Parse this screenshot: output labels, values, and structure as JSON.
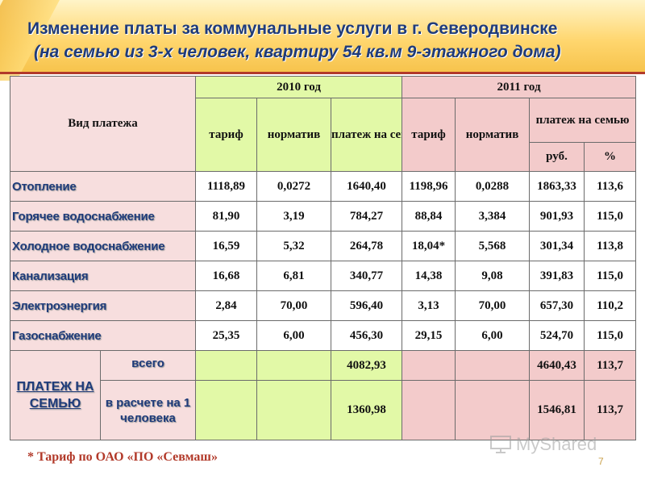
{
  "slide": {
    "title_line1": "Изменение платы за коммунальные услуги в г. Северодвинске",
    "title_line2": "(на семью из 3-х человек, квартиру 54 кв.м  9-этажного дома)",
    "footnote": "* Тариф по ОАО «ПО «Севмаш»",
    "page_number": "7",
    "watermark": "MyShared"
  },
  "table": {
    "header": {
      "payment_type": "Вид платежа",
      "year_2010": "2010  год",
      "year_2011": "2011 год",
      "tariff": "тариф",
      "norm": "норматив",
      "family_payment_2010": "платеж на семью",
      "family_payment_2011": "платеж на семью",
      "rub": "руб.",
      "percent": "%"
    },
    "rows": [
      {
        "name": "Отопление",
        "t10": "1118,89",
        "n10": "0,0272",
        "p10": "1640,40",
        "t11": "1198,96",
        "n11": "0,0288",
        "p11": "1863,33",
        "pct": "113,6"
      },
      {
        "name": "Горячее водоснабжение",
        "t10": "81,90",
        "n10": "3,19",
        "p10": "784,27",
        "t11": "88,84",
        "n11": "3,384",
        "p11": "901,93",
        "pct": "115,0"
      },
      {
        "name": "Холодное водоснабжение",
        "t10": "16,59",
        "n10": "5,32",
        "p10": "264,78",
        "t11": "18,04*",
        "n11": "5,568",
        "p11": "301,34",
        "pct": "113,8"
      },
      {
        "name": "Канализация",
        "t10": "16,68",
        "n10": "6,81",
        "p10": "340,77",
        "t11": "14,38",
        "n11": "9,08",
        "p11": "391,83",
        "pct": "115,0"
      },
      {
        "name": "Электроэнергия",
        "t10": "2,84",
        "n10": "70,00",
        "p10": "596,40",
        "t11": "3,13",
        "n11": "70,00",
        "p11": "657,30",
        "pct": "110,2"
      },
      {
        "name": "Газоснабжение",
        "t10": "25,35",
        "n10": "6,00",
        "p10": "456,30",
        "t11": "29,15",
        "n11": "6,00",
        "p11": "524,70",
        "pct": "115,0"
      }
    ],
    "totals": {
      "label": "ПЛАТЕЖ НА СЕМЬЮ",
      "total_label": "всего",
      "total_p10": "4082,93",
      "total_p11": "4640,43",
      "total_pct": "113,7",
      "per_person_label": "в расчете на 1 человека",
      "pp_p10": "1360,98",
      "pp_p11": "1546,81",
      "pp_pct": "113,7"
    }
  }
}
